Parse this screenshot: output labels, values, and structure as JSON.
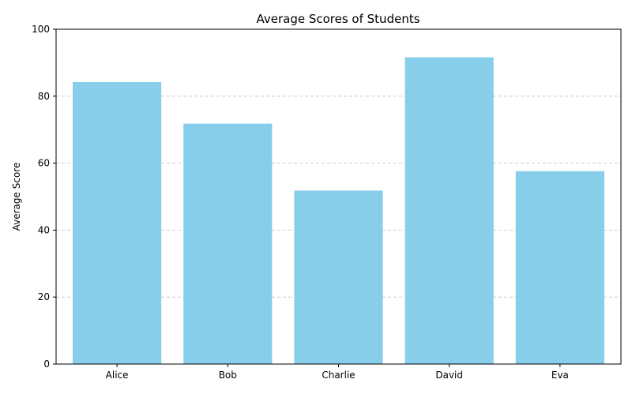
{
  "chart_data": {
    "type": "bar",
    "title": "Average Scores of Students",
    "xlabel": "",
    "ylabel": "Average Score",
    "categories": [
      "Alice",
      "Bob",
      "Charlie",
      "David",
      "Eva"
    ],
    "values": [
      84.2,
      71.8,
      51.8,
      91.6,
      57.6
    ],
    "ylim": [
      0,
      100
    ],
    "yticks": [
      "0",
      "20",
      "40",
      "60",
      "80",
      "100"
    ],
    "grid": "y-dashed",
    "bar_color": "#87ceeb",
    "grid_color": "#c0c0c0",
    "axis_color": "#000000"
  }
}
